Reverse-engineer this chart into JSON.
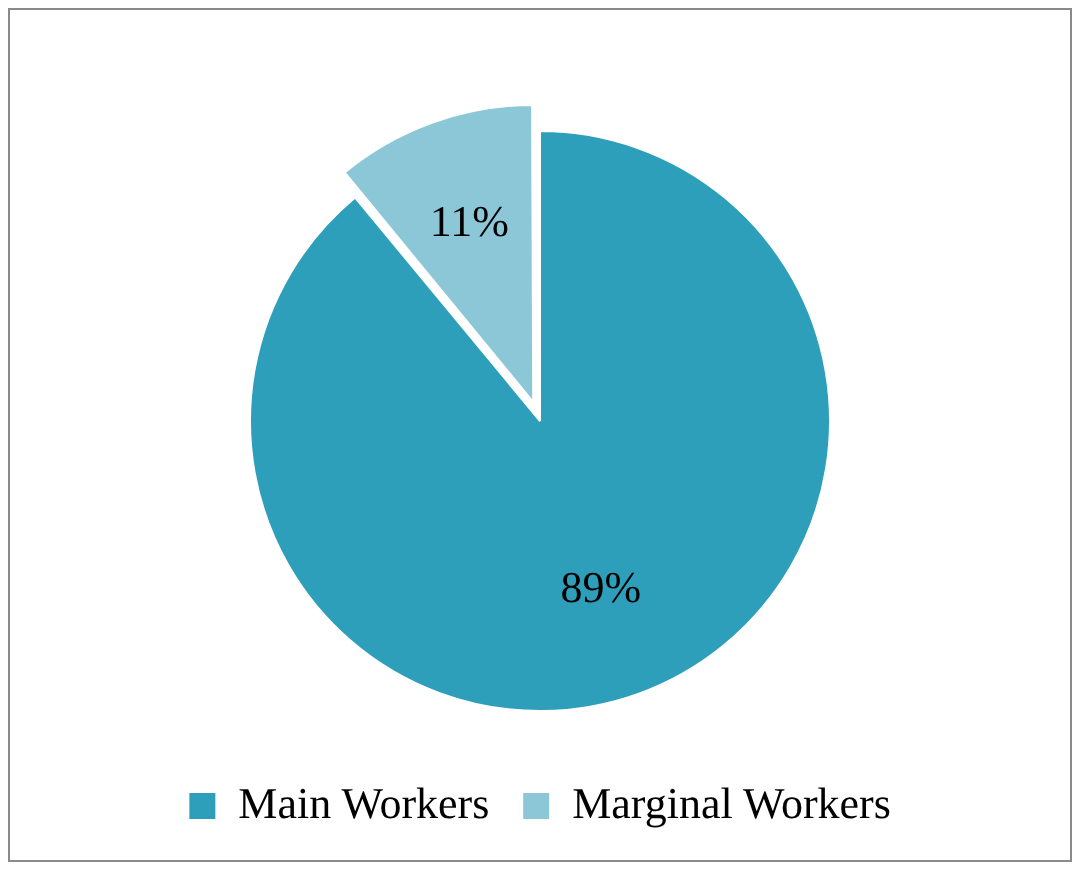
{
  "chart_data": {
    "type": "pie",
    "categories": [
      "Main Workers",
      "Marginal Workers"
    ],
    "values": [
      89,
      11
    ],
    "colors": [
      "#2e9fbb",
      "#8cc7d8"
    ],
    "value_labels": [
      "89%",
      "11%"
    ],
    "legend": "bottom"
  }
}
